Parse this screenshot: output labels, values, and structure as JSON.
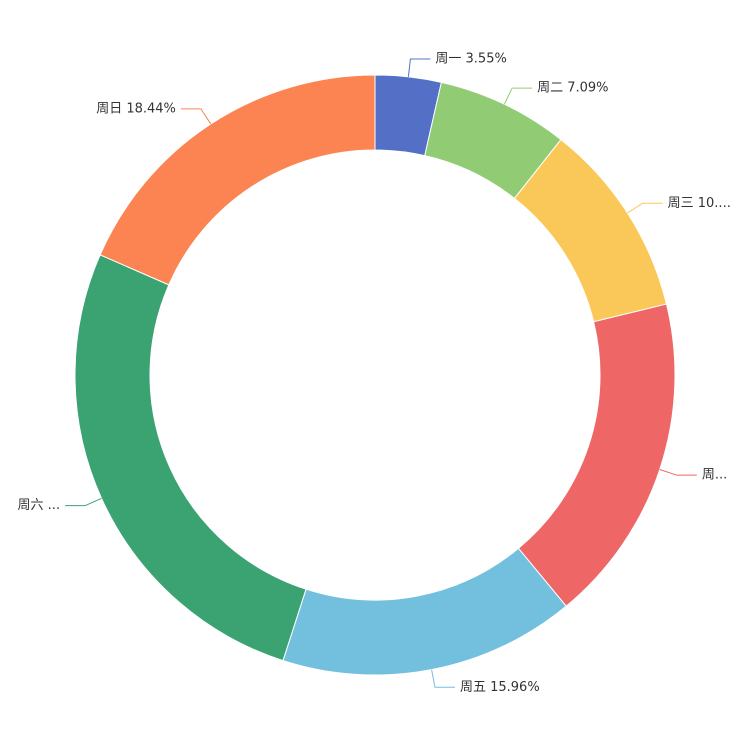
{
  "chart_data": {
    "type": "donut",
    "values": [
      3.55,
      7.09,
      10.56,
      17.8,
      15.96,
      26.6,
      18.44
    ],
    "value_labels": [
      "周一 3.55%",
      "周二 7.09%",
      "周三 10....",
      "周...",
      "周五 15.96%",
      "周六 ...",
      "周日 18.44%"
    ],
    "colors": [
      "#5470c6",
      "#91cc75",
      "#fac858",
      "#ee6666",
      "#73c0de",
      "#3ba272",
      "#fc8452"
    ]
  }
}
